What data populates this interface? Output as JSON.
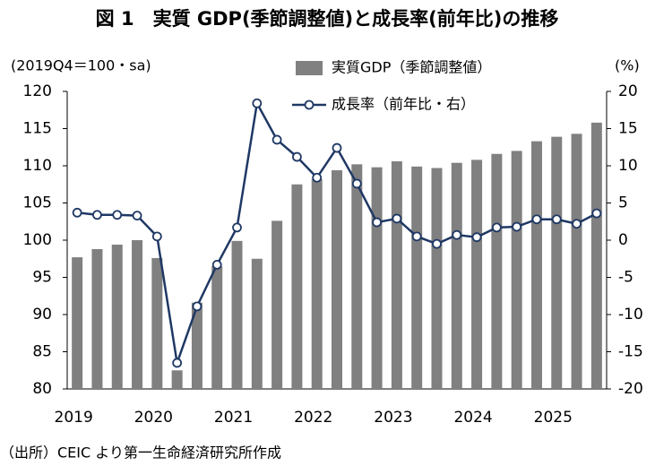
{
  "chart_data": {
    "type": "bar_line",
    "title": "図 1　実質 GDP(季節調整値)と成長率(前年比)の推移",
    "y_label": "(2019Q4＝100・sa)",
    "y2_label": "(%)",
    "source": "（出所）CEIC より第一生命経済研究所作成",
    "categories": [
      "2019",
      null,
      null,
      null,
      "2020",
      null,
      null,
      null,
      "2021",
      null,
      null,
      null,
      "2022",
      null,
      null,
      null,
      "2023",
      null,
      null,
      null,
      "2024",
      null,
      null,
      null,
      "2025",
      null,
      null
    ],
    "series": [
      {
        "name": "実質GDP（季節調整値）",
        "type": "bar",
        "color": "#808080",
        "values": [
          97.7,
          98.8,
          99.4,
          100,
          97.6,
          82.5,
          91.6,
          96.5,
          99.9,
          97.5,
          102.6,
          107.5,
          108.2,
          109.4,
          110.2,
          109.8,
          110.6,
          109.9,
          109.7,
          110.4,
          110.8,
          111.6,
          112.0,
          113.3,
          113.9,
          114.3,
          115.8
        ]
      },
      {
        "name": "成長率（前年比・右）",
        "type": "line",
        "axis": "y2",
        "color": "#1f3864",
        "values": [
          3.7,
          3.4,
          3.4,
          3.3,
          0.5,
          -16.5,
          -8.9,
          -3.3,
          1.7,
          18.4,
          13.5,
          11.2,
          8.4,
          12.4,
          7.6,
          2.4,
          2.9,
          0.5,
          -0.5,
          0.7,
          0.4,
          1.7,
          1.8,
          2.8,
          2.8,
          2.2,
          3.6
        ]
      }
    ],
    "ylim": [
      80,
      120
    ],
    "yticks": [
      80,
      85,
      90,
      95,
      100,
      105,
      110,
      115,
      120
    ],
    "y2lim": [
      -20,
      20
    ],
    "y2ticks": [
      -20,
      -15,
      -10,
      -5,
      0,
      5,
      10,
      15,
      20
    ],
    "negative_tick_color": "#ff0000",
    "title_color": "#1a4fd6",
    "grid": false,
    "legend": "top"
  }
}
